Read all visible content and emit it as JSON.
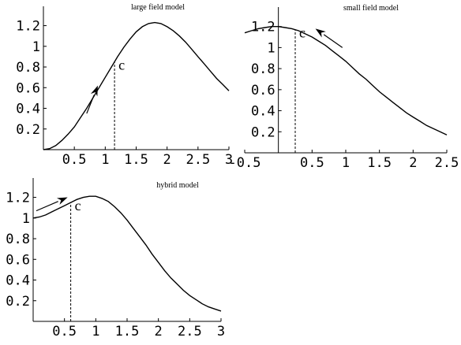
{
  "chart_data": [
    {
      "type": "line",
      "title": "large field model",
      "xlim": [
        0,
        3
      ],
      "ylim": [
        0,
        1.25
      ],
      "x_ticks": [
        "0.5",
        "1",
        "1.5",
        "2",
        "2.5",
        "3"
      ],
      "y_ticks": [
        "0.2",
        "0.4",
        "0.6",
        "0.8",
        "1",
        "1.2"
      ],
      "series": [
        {
          "x": [
            0,
            0.1,
            0.2,
            0.3,
            0.4,
            0.5,
            0.6,
            0.7,
            0.8,
            0.9,
            1.0,
            1.1,
            1.2,
            1.3,
            1.4,
            1.5,
            1.6,
            1.7,
            1.8,
            1.9,
            2.0,
            2.1,
            2.2,
            2.3,
            2.4,
            2.5,
            2.6,
            2.7,
            2.8,
            2.9,
            3.0
          ],
          "y": [
            0,
            0.01,
            0.04,
            0.09,
            0.15,
            0.22,
            0.31,
            0.4,
            0.5,
            0.6,
            0.7,
            0.8,
            0.9,
            0.99,
            1.07,
            1.14,
            1.19,
            1.22,
            1.23,
            1.22,
            1.19,
            1.15,
            1.1,
            1.04,
            0.97,
            0.9,
            0.83,
            0.76,
            0.69,
            0.63,
            0.57
          ]
        }
      ],
      "marker": {
        "label": "c",
        "x": 1.15,
        "y": 0.85
      },
      "arrow": {
        "from": [
          0.7,
          0.35
        ],
        "to": [
          0.88,
          0.62
        ]
      }
    },
    {
      "type": "line",
      "title": "small field model",
      "xlim": [
        -0.5,
        2.5
      ],
      "ylim": [
        0,
        1.25
      ],
      "x_ticks": [
        "-0.5",
        "0.5",
        "1",
        "1.5",
        "2",
        "2.5"
      ],
      "y_ticks": [
        "0.2",
        "0.4",
        "0.6",
        "0.8",
        "1",
        "1.2"
      ],
      "series": [
        {
          "x": [
            -0.5,
            -0.4,
            -0.3,
            -0.2,
            -0.1,
            0.0,
            0.1,
            0.2,
            0.3,
            0.4,
            0.5,
            0.6,
            0.7,
            0.8,
            0.9,
            1.0,
            1.1,
            1.2,
            1.3,
            1.4,
            1.5,
            1.6,
            1.7,
            1.8,
            1.9,
            2.0,
            2.1,
            2.2,
            2.3,
            2.4,
            2.5
          ],
          "y": [
            1.14,
            1.16,
            1.18,
            1.19,
            1.2,
            1.2,
            1.19,
            1.18,
            1.16,
            1.13,
            1.1,
            1.06,
            1.02,
            0.97,
            0.92,
            0.87,
            0.81,
            0.75,
            0.7,
            0.64,
            0.58,
            0.53,
            0.48,
            0.43,
            0.38,
            0.34,
            0.3,
            0.26,
            0.23,
            0.2,
            0.17
          ]
        }
      ],
      "marker": {
        "label": "c",
        "x": 0.25,
        "y": 1.17
      },
      "arrow": {
        "from": [
          0.95,
          1.0
        ],
        "to": [
          0.55,
          1.18
        ]
      }
    },
    {
      "type": "line",
      "title": "hybrid model",
      "xlim": [
        0,
        3
      ],
      "ylim": [
        0,
        1.25
      ],
      "x_ticks": [
        "0.5",
        "1",
        "1.5",
        "2",
        "2.5",
        "3"
      ],
      "y_ticks": [
        "0.2",
        "0.4",
        "0.6",
        "0.8",
        "1",
        "1.2"
      ],
      "series": [
        {
          "x": [
            0,
            0.1,
            0.2,
            0.3,
            0.4,
            0.5,
            0.6,
            0.7,
            0.8,
            0.9,
            1.0,
            1.1,
            1.2,
            1.3,
            1.4,
            1.5,
            1.6,
            1.7,
            1.8,
            1.9,
            2.0,
            2.1,
            2.2,
            2.3,
            2.4,
            2.5,
            2.6,
            2.7,
            2.8,
            2.9,
            3.0
          ],
          "y": [
            1.0,
            1.01,
            1.03,
            1.06,
            1.09,
            1.12,
            1.15,
            1.18,
            1.2,
            1.21,
            1.21,
            1.19,
            1.16,
            1.11,
            1.05,
            0.98,
            0.9,
            0.82,
            0.74,
            0.65,
            0.57,
            0.49,
            0.42,
            0.36,
            0.3,
            0.25,
            0.21,
            0.17,
            0.14,
            0.12,
            0.1
          ]
        }
      ],
      "marker": {
        "label": "c",
        "x": 0.6,
        "y": 1.15
      },
      "arrow": {
        "from": [
          0.05,
          1.07
        ],
        "to": [
          0.55,
          1.2
        ]
      }
    }
  ]
}
